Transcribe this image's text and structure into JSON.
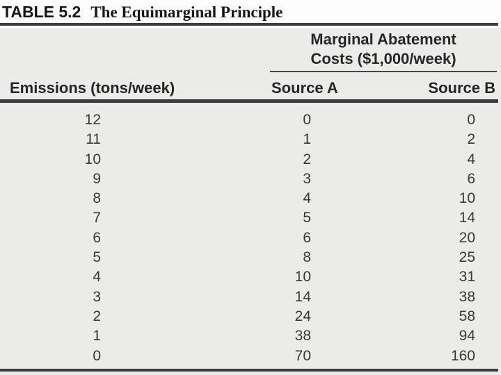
{
  "page": {
    "title_label": "TABLE 5.2",
    "title_text": "The Equimarginal Principle"
  },
  "table": {
    "spanner_line1": "Marginal Abatement",
    "spanner_line2": "Costs ($1,000/week)",
    "col_emissions": "Emissions (tons/week)",
    "col_source_a": "Source A",
    "col_source_b": "Source B",
    "rows": [
      [
        12,
        0,
        0
      ],
      [
        11,
        1,
        2
      ],
      [
        10,
        2,
        4
      ],
      [
        9,
        3,
        6
      ],
      [
        8,
        4,
        10
      ],
      [
        7,
        5,
        14
      ],
      [
        6,
        6,
        20
      ],
      [
        5,
        8,
        25
      ],
      [
        4,
        10,
        31
      ],
      [
        3,
        14,
        38
      ],
      [
        2,
        24,
        58
      ],
      [
        1,
        38,
        94
      ],
      [
        0,
        70,
        160
      ]
    ]
  },
  "colors": {
    "rule": "#3b3b3b",
    "panel_bg": "#ebece9",
    "text": "#383838",
    "title": "#161616"
  },
  "chart_data": {
    "type": "table",
    "title": "TABLE 5.2  The Equimarginal Principle",
    "column_group": "Marginal Abatement Costs ($1,000/week)",
    "columns": [
      "Emissions (tons/week)",
      "Source A",
      "Source B"
    ],
    "rows": [
      [
        12,
        0,
        0
      ],
      [
        11,
        1,
        2
      ],
      [
        10,
        2,
        4
      ],
      [
        9,
        3,
        6
      ],
      [
        8,
        4,
        10
      ],
      [
        7,
        5,
        14
      ],
      [
        6,
        6,
        20
      ],
      [
        5,
        8,
        25
      ],
      [
        4,
        10,
        31
      ],
      [
        3,
        14,
        38
      ],
      [
        2,
        24,
        58
      ],
      [
        1,
        38,
        94
      ],
      [
        0,
        70,
        160
      ]
    ]
  }
}
